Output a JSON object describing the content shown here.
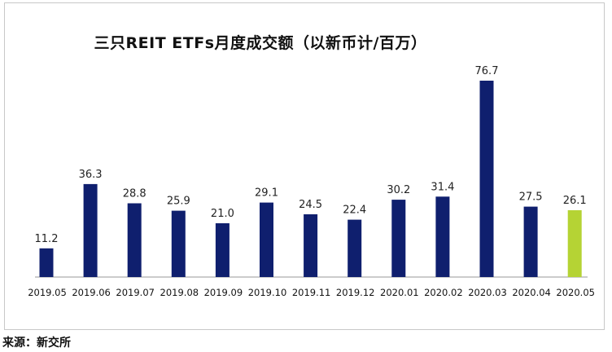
{
  "chart_data": {
    "type": "bar",
    "title": "三只REIT ETFs月度成交额（以新币计/百万）",
    "categories": [
      "2019.05",
      "2019.06",
      "2019.07",
      "2019.08",
      "2019.09",
      "2019.10",
      "2019.11",
      "2019.12",
      "2020.01",
      "2020.02",
      "2020.03",
      "2020.04",
      "2020.05"
    ],
    "values": [
      11.2,
      36.3,
      28.8,
      25.9,
      21.0,
      29.1,
      24.5,
      22.4,
      30.2,
      31.4,
      76.7,
      27.5,
      26.1
    ],
    "value_labels": [
      "11.2",
      "36.3",
      "28.8",
      "25.9",
      "21.0",
      "29.1",
      "24.5",
      "22.4",
      "30.2",
      "31.4",
      "76.7",
      "27.5",
      "26.1"
    ],
    "ylim": [
      0,
      80
    ],
    "grid": false,
    "legend": "none",
    "bar_color": "#0f1f6e",
    "highlight_color": "#b5d334",
    "highlight_index": 12
  },
  "source": "来源：新交所"
}
